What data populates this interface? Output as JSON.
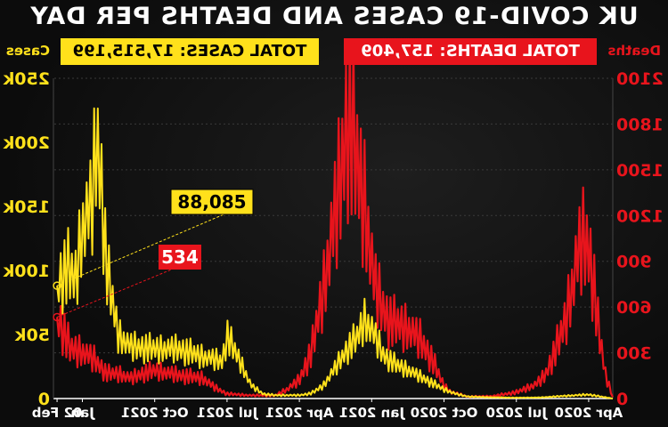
{
  "title": "UK COVID-19 CASES AND DEATHS PER DAY",
  "banners": {
    "total_deaths": "TOTAL DEATHS: 157,409",
    "total_cases": "TOTAL CASES: 17,515,199"
  },
  "axes": {
    "left_word": "Deaths",
    "right_word": "Cases"
  },
  "callouts": {
    "cases_latest": "88,085",
    "deaths_latest": "534"
  },
  "colors": {
    "deaths": "#e8141c",
    "cases": "#ffe11b",
    "background": "#0a0a0a"
  },
  "chart_data": {
    "type": "line",
    "title": "UK COVID-19 CASES AND DEATHS PER DAY",
    "x_ticks": [
      "Apr 2020",
      "Jul 2020",
      "Oct 2020",
      "Jan 2021",
      "Apr 2021",
      "Jul 2021",
      "Oct 2021",
      "Jan",
      "02 Feb"
    ],
    "x_tick_months": [
      1,
      4,
      7,
      10,
      13,
      16,
      19,
      22,
      23.05
    ],
    "xlim_months": [
      0,
      23.2
    ],
    "y_left": {
      "label": "Deaths",
      "lim": [
        0,
        2100
      ],
      "ticks": [
        0,
        300,
        600,
        900,
        1200,
        1500,
        1800,
        2100
      ]
    },
    "y_right": {
      "label": "Cases",
      "lim": [
        0,
        250000
      ],
      "ticks": [
        0,
        50000,
        100000,
        150000,
        200000,
        250000
      ],
      "tick_labels": [
        "0",
        "50k",
        "100k",
        "150k",
        "200k",
        "250k"
      ]
    },
    "series": [
      {
        "name": "Deaths",
        "axis": "left",
        "x_months": [
          0,
          0.3,
          0.6,
          0.8,
          1.0,
          1.1,
          1.3,
          1.5,
          1.7,
          2.0,
          2.4,
          2.8,
          3.2,
          4.0,
          5.0,
          6.0,
          6.7,
          7.0,
          7.5,
          8.0,
          8.5,
          9.0,
          9.3,
          9.6,
          9.9,
          10.1,
          10.3,
          10.5,
          10.8,
          11.0,
          11.3,
          11.6,
          12.0,
          12.5,
          13.0,
          13.5,
          14.0,
          15.0,
          16.0,
          16.5,
          17.0,
          18.0,
          19.0,
          19.5,
          20.0,
          20.5,
          21.0,
          21.5,
          22.0,
          22.5,
          23.05
        ],
        "values": [
          10,
          150,
          450,
          750,
          950,
          1000,
          1000,
          880,
          700,
          480,
          300,
          150,
          90,
          40,
          15,
          12,
          40,
          80,
          250,
          380,
          450,
          480,
          500,
          600,
          750,
          1000,
          1250,
          1400,
          1700,
          1800,
          1400,
          1100,
          700,
          300,
          120,
          60,
          20,
          20,
          30,
          70,
          130,
          150,
          180,
          160,
          130,
          160,
          160,
          250,
          300,
          320,
          534
        ]
      },
      {
        "name": "Cases",
        "axis": "right",
        "x_months": [
          0,
          1,
          2,
          3,
          4,
          5,
          6,
          6.5,
          7,
          7.5,
          8,
          8.5,
          9,
          9.5,
          10,
          10.3,
          10.6,
          11,
          11.5,
          12,
          12.5,
          13,
          14,
          14.5,
          15,
          15.5,
          16,
          16.2,
          16.5,
          17,
          18,
          19,
          20,
          20.5,
          21,
          21.2,
          21.4,
          21.6,
          22,
          22.3,
          22.6,
          23.05
        ],
        "values": [
          0,
          3000,
          2000,
          800,
          600,
          900,
          1500,
          3500,
          7000,
          12000,
          17000,
          22000,
          26000,
          33000,
          53000,
          60000,
          47000,
          38000,
          24000,
          10000,
          4000,
          2500,
          2500,
          3500,
          10000,
          30000,
          48000,
          28000,
          30000,
          32000,
          38000,
          38000,
          40000,
          48000,
          100000,
          160000,
          200000,
          150000,
          130000,
          90000,
          100000,
          88085
        ]
      }
    ]
  }
}
